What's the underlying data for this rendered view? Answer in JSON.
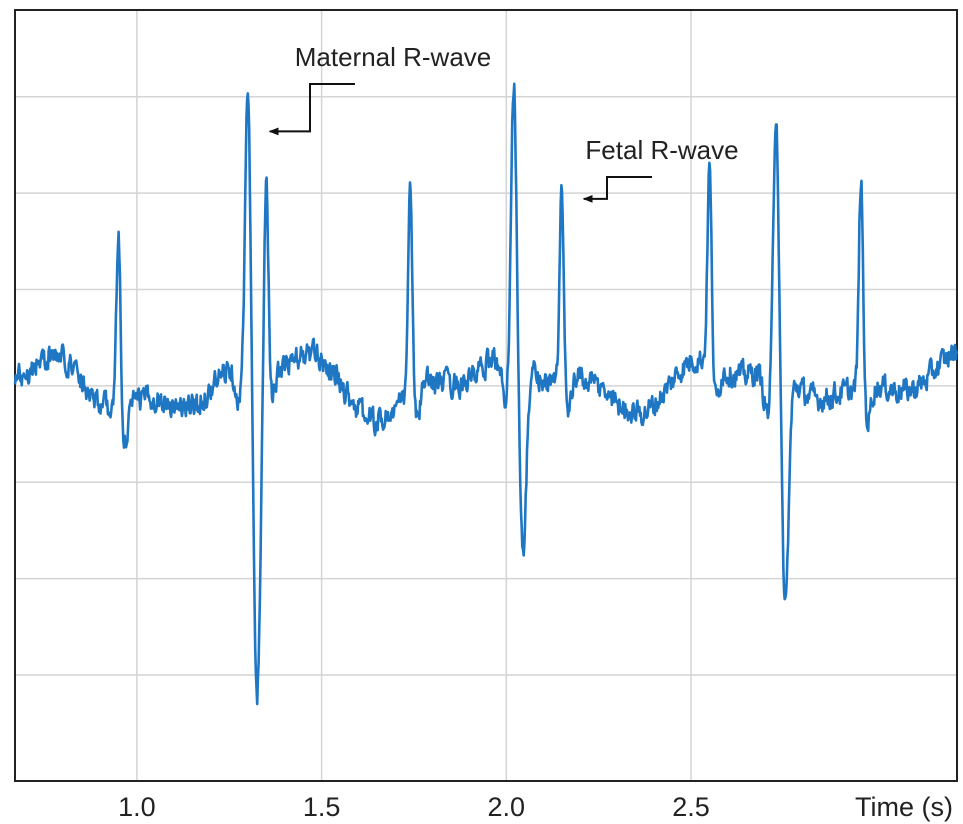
{
  "chart_data": {
    "type": "line",
    "title": "",
    "xlabel": "Time (s)",
    "ylabel": "",
    "xlim": [
      0.67,
      3.22
    ],
    "ylim": [
      -2.05,
      1.95
    ],
    "grid": true,
    "legend": "none",
    "x_ticks": [
      1.0,
      1.5,
      2.0,
      2.5
    ],
    "x_tick_labels": [
      "1.0",
      "1.5",
      "2.0",
      "2.5"
    ],
    "y_gridlines": [
      -1.5,
      -1.0,
      -0.5,
      0.0,
      0.5,
      1.0,
      1.5
    ],
    "series": [
      {
        "line_color": "#1f77c4",
        "baseline": 0.0,
        "noise_amplitude": 0.1,
        "events": [
          {
            "x": 0.95,
            "kind": "fetal",
            "peak": 0.95
          },
          {
            "x": 1.3,
            "kind": "maternal",
            "peak": 1.5,
            "trough": -1.76
          },
          {
            "x": 1.35,
            "kind": "fetal",
            "peak": 1.07
          },
          {
            "x": 1.74,
            "kind": "fetal",
            "peak": 1.14
          },
          {
            "x": 2.02,
            "kind": "maternal",
            "peak": 1.55,
            "trough": -1.02
          },
          {
            "x": 2.15,
            "kind": "fetal",
            "peak": 1.1
          },
          {
            "x": 2.55,
            "kind": "fetal",
            "peak": 1.08
          },
          {
            "x": 2.73,
            "kind": "maternal",
            "peak": 1.48,
            "trough": -1.2
          },
          {
            "x": 2.96,
            "kind": "fetal",
            "peak": 1.15
          }
        ]
      }
    ],
    "annotations": [
      {
        "text": "Maternal R-wave",
        "points_to": {
          "x": 1.3,
          "y": 1.32
        }
      },
      {
        "text": "Fetal R-wave",
        "points_to": {
          "x": 2.15,
          "y": 0.97
        }
      }
    ]
  }
}
